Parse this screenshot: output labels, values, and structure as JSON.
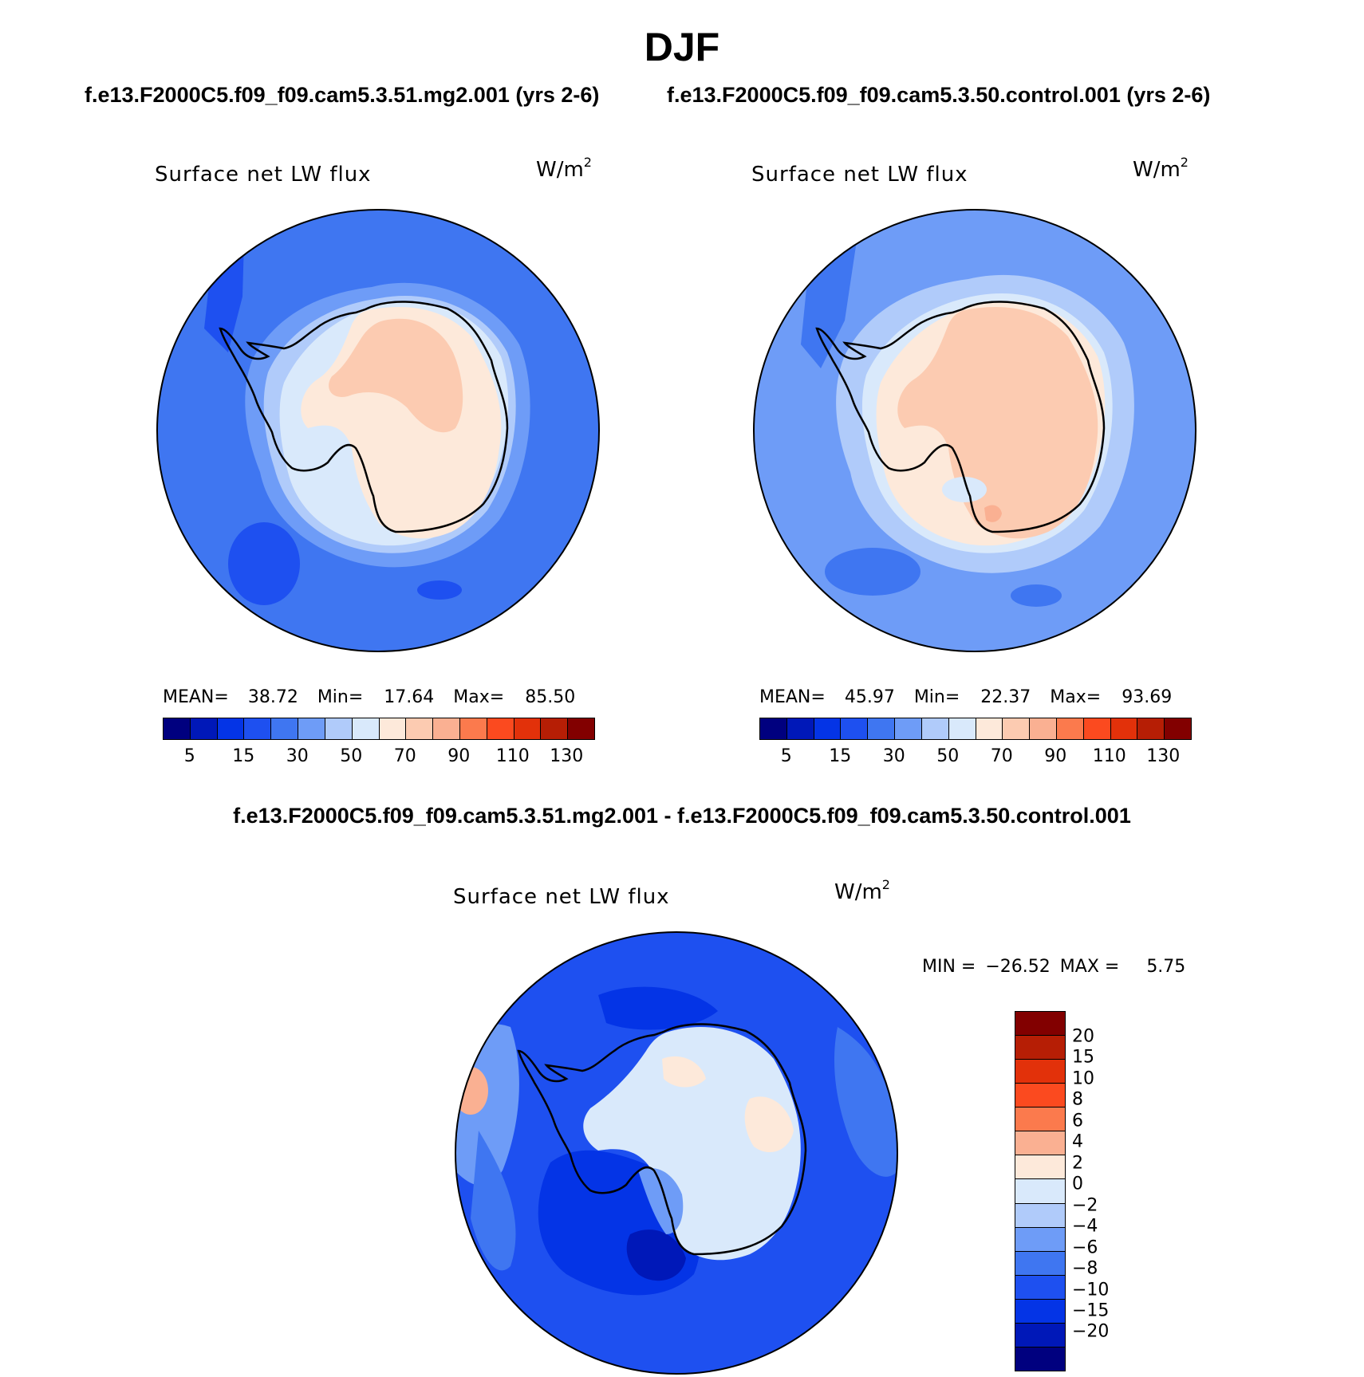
{
  "figure": {
    "season": "DJF",
    "subtitle_left": "f.e13.F2000C5.f09_f09.cam5.3.51.mg2.001 (yrs 2-6)",
    "subtitle_right": "f.e13.F2000C5.f09_f09.cam5.3.50.control.001 (yrs 2-6)",
    "diff_title": "f.e13.F2000C5.f09_f09.cam5.3.51.mg2.001 - f.e13.F2000C5.f09_f09.cam5.3.50.control.001"
  },
  "panels": [
    {
      "title": "Surface net LW flux",
      "units": "W/m",
      "units_exp": "2",
      "mean_label": "MEAN=",
      "mean": "38.72",
      "min_label": "Min=",
      "min": "17.64",
      "max_label": "Max=",
      "max": "85.50",
      "colors": {
        "ocean": "#3f76f1",
        "ring": "#6e9cf7",
        "shelf": "#b0cbfa",
        "edge": "#d9e9fb",
        "interior": "#fde9da",
        "highland": "#fccbb1",
        "low": "#1e50f0"
      }
    },
    {
      "title": "Surface net LW flux",
      "units": "W/m",
      "units_exp": "2",
      "mean_label": "MEAN=",
      "mean": "45.97",
      "min_label": "Min=",
      "min": "22.37",
      "max_label": "Max=",
      "max": "93.69",
      "colors": {
        "ocean": "#6e9cf7",
        "ring": "#b0cbfa",
        "shelf": "#d9e9fb",
        "edge": "#fde9da",
        "interior": "#fccbb1",
        "highland": "#fab092",
        "low": "#3f76f1"
      }
    }
  ],
  "abs_colorbar": {
    "colors": [
      "#00007f",
      "#0018b8",
      "#0434e6",
      "#1e50f0",
      "#3f76f1",
      "#6e9cf7",
      "#b0cbfa",
      "#d9e9fb",
      "#fde9da",
      "#fccbb1",
      "#fab092",
      "#fb7a4d",
      "#fb4a1f",
      "#e2310a",
      "#b61e05",
      "#820000"
    ],
    "ticks": [
      "5",
      "15",
      "30",
      "50",
      "70",
      "90",
      "110",
      "130"
    ]
  },
  "diff_panel": {
    "title": "Surface net LW flux",
    "units": "W/m",
    "units_exp": "2",
    "min_label": "MIN =",
    "min": "−26.52",
    "max_label": "MAX =",
    "max": "5.75",
    "colors": {
      "ocean": "#1e50f0",
      "ring": "#3f76f1",
      "outer": "#6e9cf7",
      "deep": "#0434e6",
      "deepest": "#0018b8",
      "land": "#d9e9fb",
      "warm": "#fde9da",
      "warm2": "#fab092"
    }
  },
  "diff_colorbar": {
    "colors_top_to_bottom": [
      "#820000",
      "#b61e05",
      "#e2310a",
      "#fb4a1f",
      "#fb7a4d",
      "#fab092",
      "#fde9da",
      "#d9e9fb",
      "#b0cbfa",
      "#6e9cf7",
      "#3f76f1",
      "#1e50f0",
      "#0434e6",
      "#0018b8",
      "#00007f"
    ],
    "ticks": [
      "20",
      "15",
      "10",
      "8",
      "6",
      "4",
      "2",
      "0",
      "−2",
      "−4",
      "−6",
      "−8",
      "−10",
      "−15",
      "−20"
    ]
  }
}
